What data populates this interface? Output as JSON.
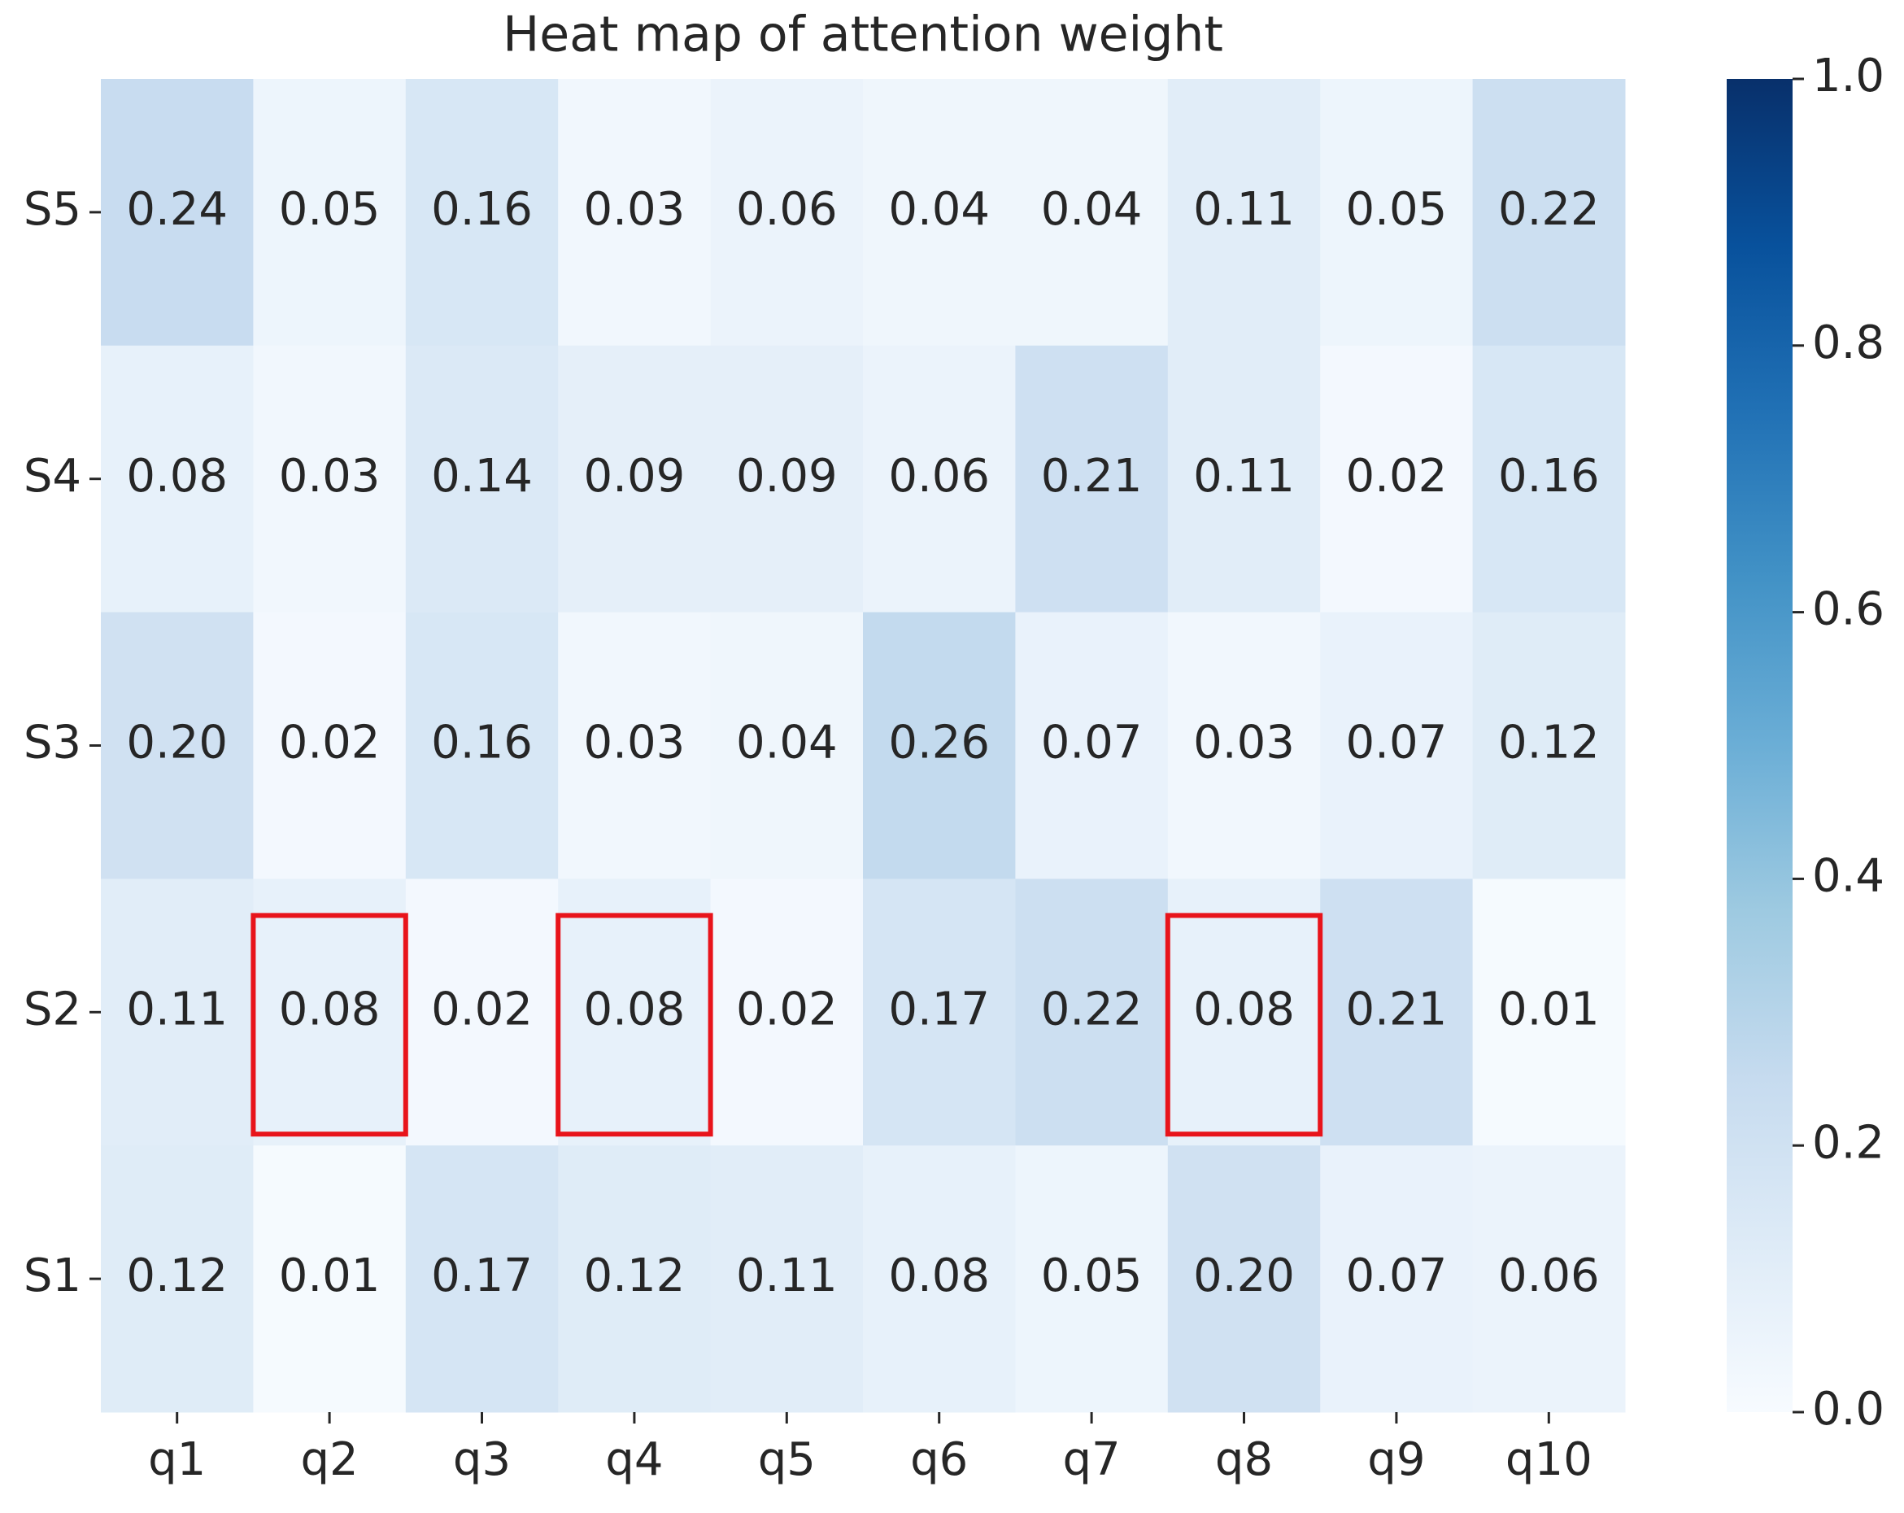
{
  "chart_data": {
    "type": "heatmap",
    "title": "Heat map of attention weight",
    "x_categories": [
      "q1",
      "q2",
      "q3",
      "q4",
      "q5",
      "q6",
      "q7",
      "q8",
      "q9",
      "q10"
    ],
    "y_categories": [
      "S5",
      "S4",
      "S3",
      "S2",
      "S1"
    ],
    "values": [
      [
        0.24,
        0.05,
        0.16,
        0.03,
        0.06,
        0.04,
        0.04,
        0.11,
        0.05,
        0.22
      ],
      [
        0.08,
        0.03,
        0.14,
        0.09,
        0.09,
        0.06,
        0.21,
        0.11,
        0.02,
        0.16
      ],
      [
        0.2,
        0.02,
        0.16,
        0.03,
        0.04,
        0.26,
        0.07,
        0.03,
        0.07,
        0.12
      ],
      [
        0.11,
        0.08,
        0.02,
        0.08,
        0.02,
        0.17,
        0.22,
        0.08,
        0.21,
        0.01
      ],
      [
        0.12,
        0.01,
        0.17,
        0.12,
        0.11,
        0.08,
        0.05,
        0.2,
        0.07,
        0.06
      ]
    ],
    "value_labels": [
      [
        "0.24",
        "0.05",
        "0.16",
        "0.03",
        "0.06",
        "0.04",
        "0.04",
        "0.11",
        "0.05",
        "0.22"
      ],
      [
        "0.08",
        "0.03",
        "0.14",
        "0.09",
        "0.09",
        "0.06",
        "0.21",
        "0.11",
        "0.02",
        "0.16"
      ],
      [
        "0.20",
        "0.02",
        "0.16",
        "0.03",
        "0.04",
        "0.26",
        "0.07",
        "0.03",
        "0.07",
        "0.12"
      ],
      [
        "0.11",
        "0.08",
        "0.02",
        "0.08",
        "0.02",
        "0.17",
        "0.22",
        "0.08",
        "0.21",
        "0.01"
      ],
      [
        "0.12",
        "0.01",
        "0.17",
        "0.12",
        "0.11",
        "0.08",
        "0.05",
        "0.20",
        "0.07",
        "0.06"
      ]
    ],
    "cmap": "Blues",
    "clim": [
      0,
      1
    ],
    "cticks": [
      {
        "value": 0,
        "label": "0.0"
      },
      0.2,
      0.4,
      0.6,
      0.8,
      {
        "value": 1,
        "label": "1.0"
      }
    ],
    "highlight": [
      {
        "row": 3,
        "col": 1
      },
      {
        "row": 3,
        "col": 3
      },
      {
        "row": 3,
        "col": 7
      }
    ],
    "highlight_color": "#e8141b"
  }
}
